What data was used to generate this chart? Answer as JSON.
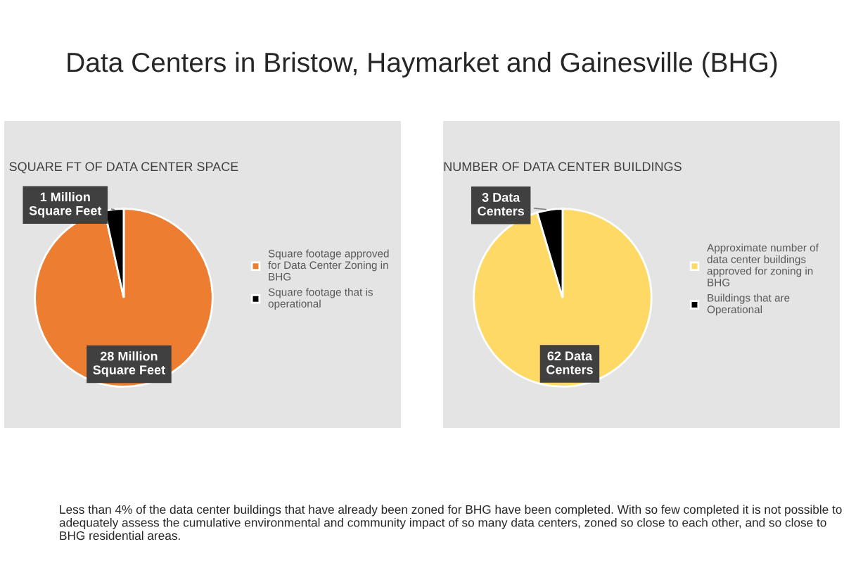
{
  "chart_data": [
    {
      "type": "pie",
      "title": "SQUARE FT OF DATA CENTER SPACE",
      "categories": [
        "Square footage approved\nfor Data Center Zoning in\nBHG",
        "Square footage that is\noperational"
      ],
      "values": [
        28,
        1
      ],
      "colors": [
        "#ed7d31",
        "#000000"
      ],
      "value_labels": [
        "28 Million\nSquare Feet",
        "1 Million\nSquare Feet"
      ],
      "legend": "right",
      "annotations": [
        "Data Centers in Bristow, Haymarket and Gainesville (BHG)",
        "Less than 4% of the data center buildings that have already been zoned for BHG have been completed. With so few completed it is not possible to adequately assess the cumulative environmental and community impact of so many data centers, zoned so close to each other, and so close to BHG residential areas."
      ]
    },
    {
      "type": "pie",
      "title": "NUMBER OF DATA CENTER BUILDINGS",
      "categories": [
        "Approximate number of\ndata center buildings\napproved for zoning in\nBHG",
        "Buildings that are\nOperational"
      ],
      "values": [
        62,
        3
      ],
      "colors": [
        "#ffd966",
        "#000000"
      ],
      "value_labels": [
        "62 Data\nCenters",
        "3 Data\nCenters"
      ],
      "legend": "right"
    }
  ]
}
